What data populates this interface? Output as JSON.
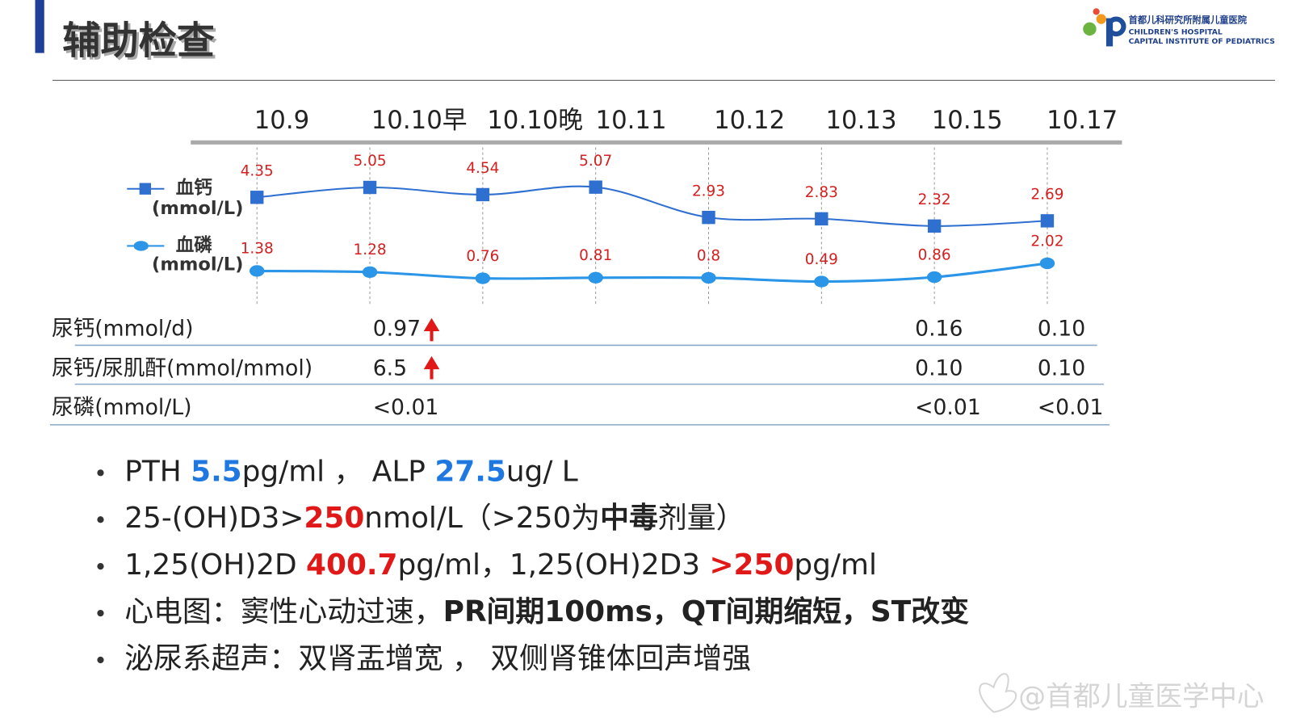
{
  "header": {
    "title": "辅助检查",
    "logo": {
      "name_cn": "首都儿科研究所附属儿童医院",
      "name_en_1": "CHILDREN'S HOSPITAL",
      "name_en_2": "CAPITAL INSTITUTE OF PEDIATRICS"
    }
  },
  "chart_data": {
    "type": "line",
    "categories": [
      "10.9",
      "10.10早",
      "10.10晚",
      "10.11",
      "10.12",
      "10.13",
      "10.15",
      "10.17"
    ],
    "series": [
      {
        "name": "血钙",
        "unit": "(mmol/L)",
        "color": "#2f6fd0",
        "marker": "square",
        "values": [
          4.35,
          5.05,
          4.54,
          5.07,
          2.93,
          2.83,
          2.32,
          2.69
        ]
      },
      {
        "name": "血磷",
        "unit": "(mmol/L)",
        "color": "#2b95e8",
        "marker": "circle",
        "values": [
          1.38,
          1.28,
          0.76,
          0.81,
          0.8,
          0.49,
          0.86,
          2.02
        ]
      }
    ],
    "value_label_color": "#d42020"
  },
  "table": {
    "rows": [
      [
        "尿钙(mmol/d)",
        "0.97",
        "0.16",
        "0.10"
      ],
      [
        "尿钙/尿肌酐(mmol/mmol)",
        "6.5",
        "0.10",
        "0.10"
      ],
      [
        "尿磷(mmol/L)",
        "<0.01",
        "<0.01",
        "<0.01"
      ]
    ]
  },
  "bullets": [
    [
      {
        "text": "PTH ",
        "style": "normal"
      },
      {
        "text": "5.5",
        "style": "blue"
      },
      {
        "text": "pg/ml ， ALP ",
        "style": "normal"
      },
      {
        "text": "27.5",
        "style": "blue"
      },
      {
        "text": "ug/ L",
        "style": "normal"
      }
    ],
    [
      {
        "text": "25-(OH)D3>",
        "style": "normal"
      },
      {
        "text": "250",
        "style": "red"
      },
      {
        "text": "nmol/L（>250为",
        "style": "normal"
      },
      {
        "text": "中毒",
        "style": "bold"
      },
      {
        "text": "剂量）",
        "style": "normal"
      }
    ],
    [
      {
        "text": "1,25(OH)2D ",
        "style": "normal"
      },
      {
        "text": "400.7",
        "style": "red"
      },
      {
        "text": "pg/ml，1,25(OH)2D3 ",
        "style": "normal"
      },
      {
        "text": ">250",
        "style": "red"
      },
      {
        "text": "pg/ml",
        "style": "normal"
      }
    ],
    [
      {
        "text": "心电图：窦性心动过速，",
        "style": "normal"
      },
      {
        "text": "PR间期100ms，QT间期缩短，ST改变",
        "style": "bold"
      }
    ],
    [
      {
        "text": "泌尿系超声：双肾盂增宽 ， 双侧肾锥体回声增强",
        "style": "normal"
      }
    ]
  ],
  "watermark": "@首都儿童医学中心"
}
